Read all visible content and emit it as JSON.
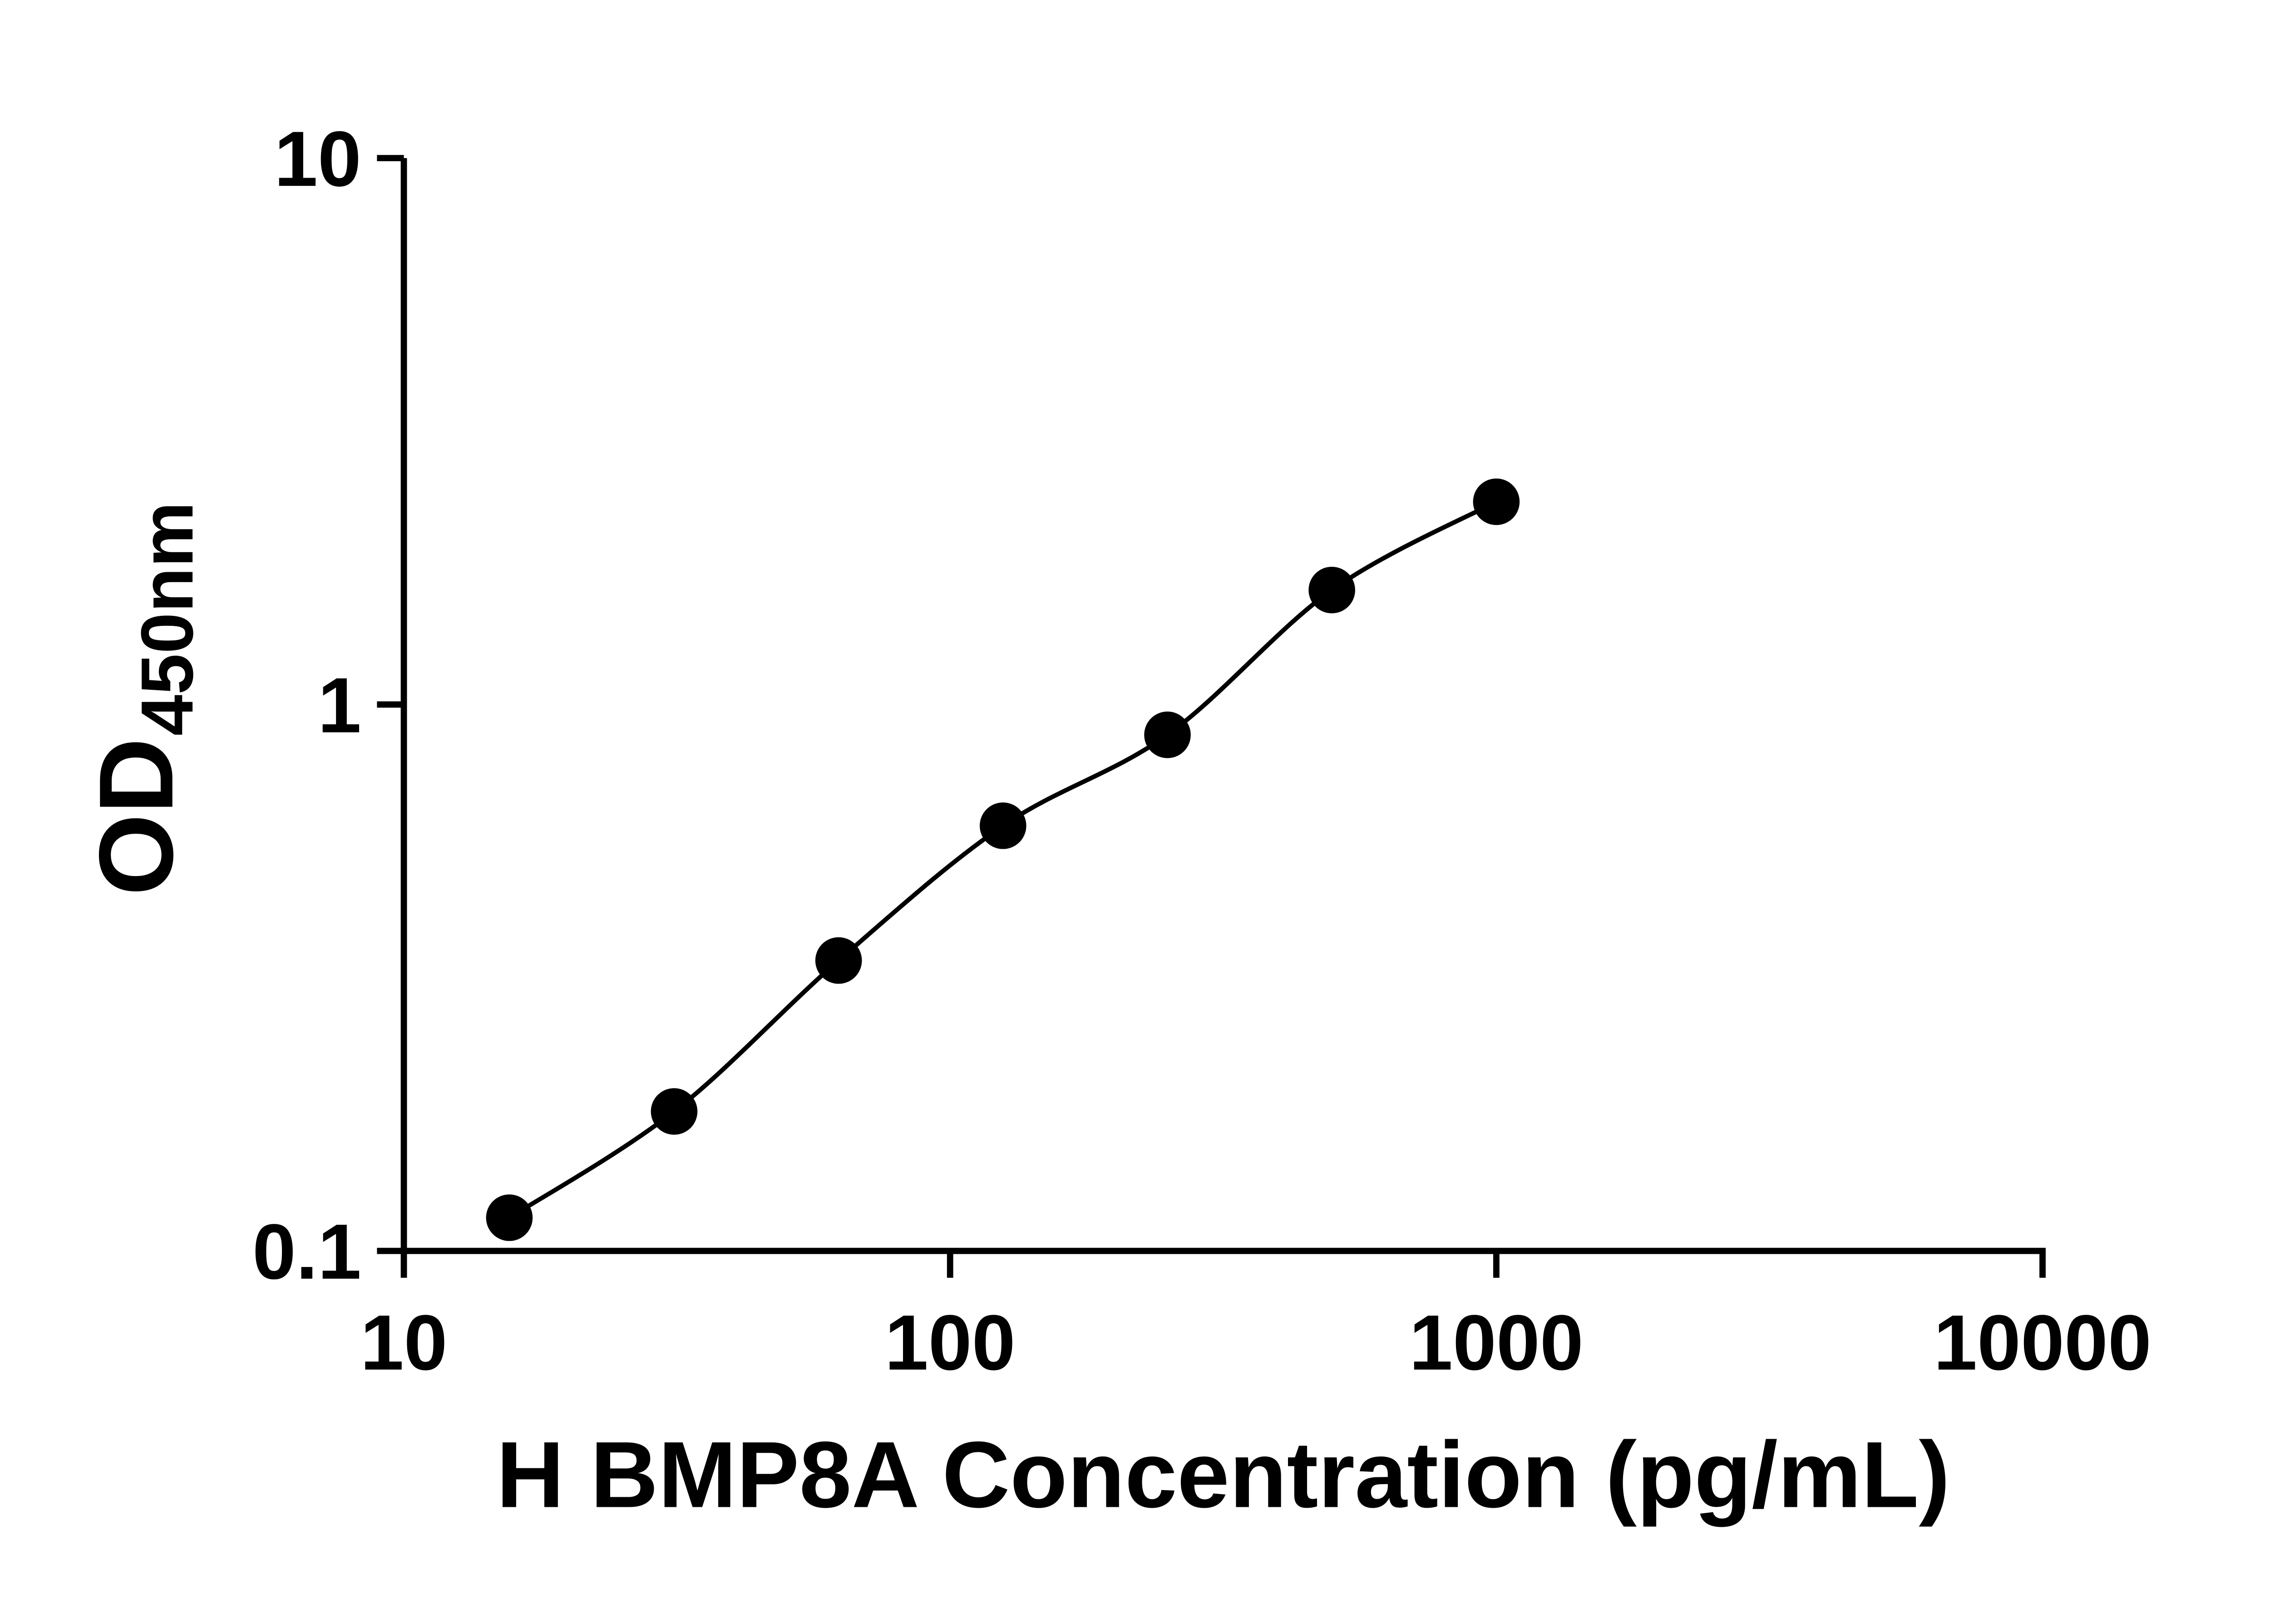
{
  "chart_data": {
    "type": "scatter",
    "title": "",
    "xlabel": "H BMP8A Concentration (pg/mL)",
    "ylabel_main": "OD",
    "ylabel_sub": "450nm",
    "x_scale": "log",
    "y_scale": "log",
    "xlim": [
      10,
      10000
    ],
    "ylim": [
      0.1,
      10
    ],
    "x_ticks": [
      10,
      100,
      1000,
      10000
    ],
    "y_ticks": [
      0.1,
      1,
      10
    ],
    "x": [
      15.6,
      31.25,
      62.5,
      125,
      250,
      500,
      1000
    ],
    "y": [
      0.115,
      0.18,
      0.34,
      0.6,
      0.88,
      1.62,
      2.35
    ],
    "fit_line": true,
    "marker_color": "#000000",
    "line_color": "#000000",
    "axis_color": "#000000",
    "background": "#ffffff"
  }
}
